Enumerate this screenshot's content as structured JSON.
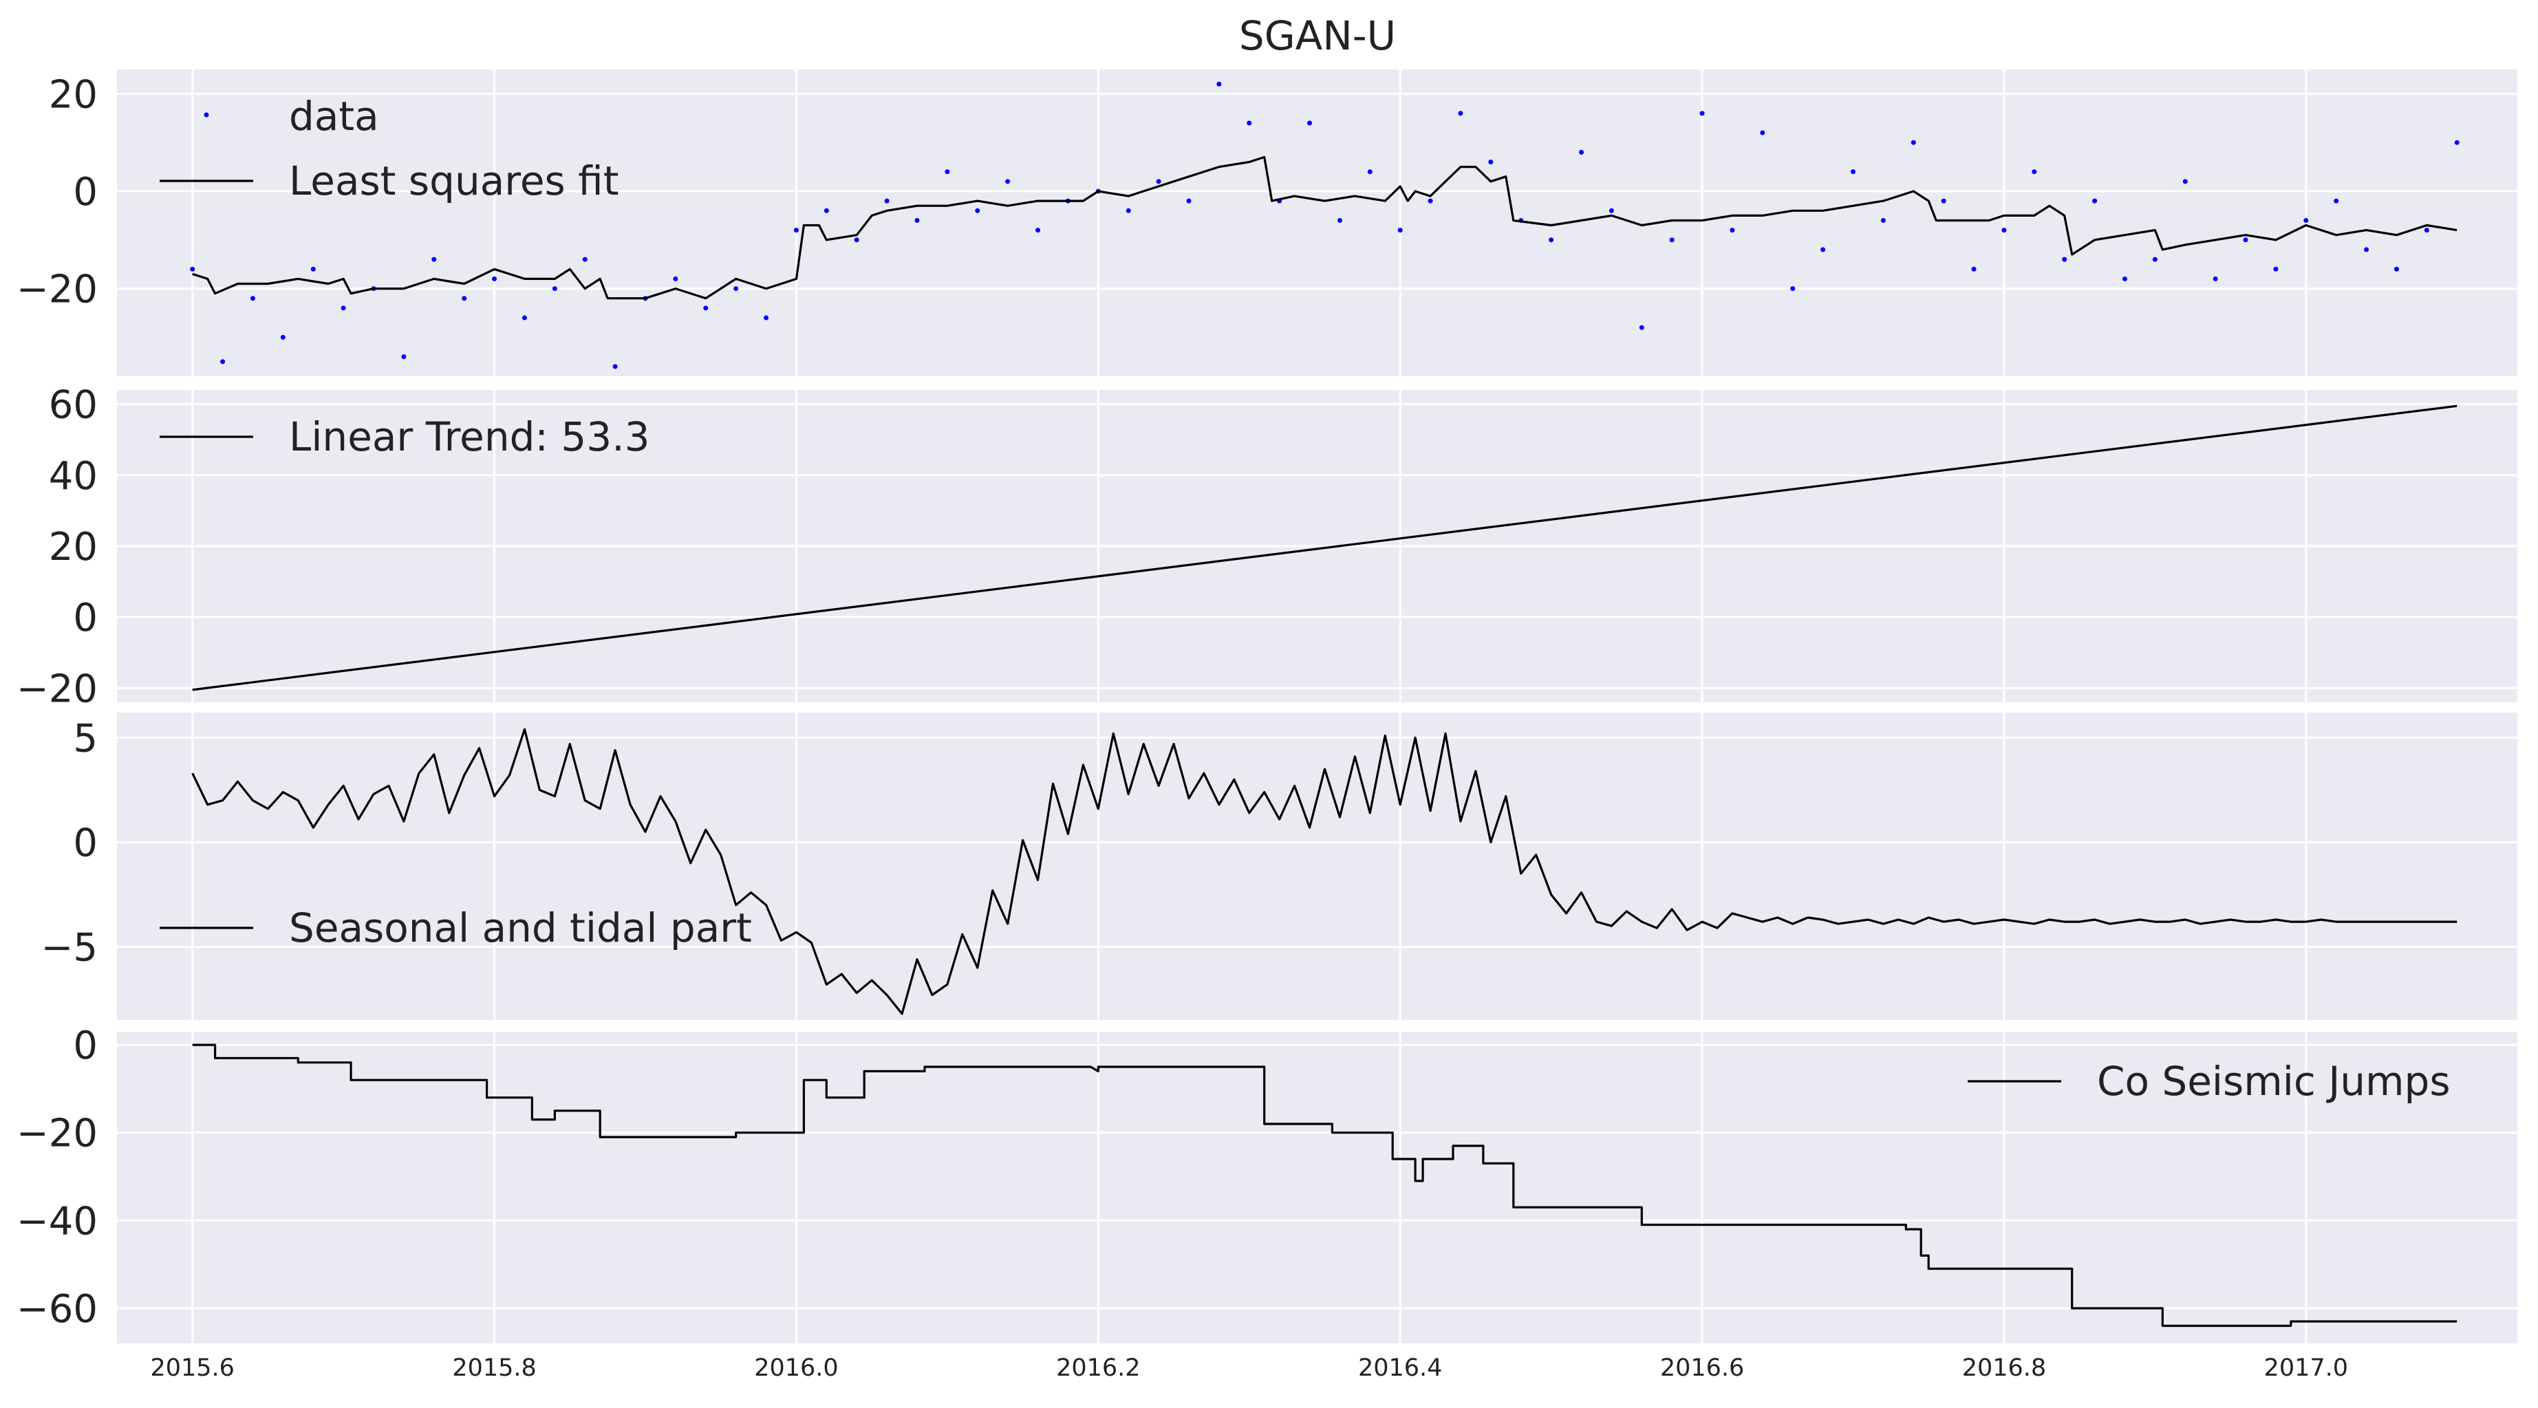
{
  "figure": {
    "title": "SGAN-U"
  },
  "colors": {
    "panel_bg": "#eaeaf2",
    "grid": "#ffffff",
    "line": "#000000",
    "data_points": "#0000ff",
    "text": "#222222"
  },
  "x_axis": {
    "range": [
      2015.55,
      2017.14
    ],
    "ticks": [
      2015.6,
      2015.8,
      2016.0,
      2016.2,
      2016.4,
      2016.6,
      2016.8,
      2017.0
    ],
    "tick_labels": [
      "2015.6",
      "2015.8",
      "2016.0",
      "2016.2",
      "2016.4",
      "2016.6",
      "2016.8",
      "2017.0"
    ]
  },
  "chart_data": [
    {
      "type": "line",
      "title": "SGAN-U",
      "ylim": [
        -38,
        25
      ],
      "yticks": [
        -20,
        0,
        20
      ],
      "ytick_labels": [
        "−20",
        "0",
        "20"
      ],
      "legend_loc": "upper left",
      "grid": true,
      "series": [
        {
          "name": "data",
          "style": "points",
          "x": [
            2015.6,
            2015.62,
            2015.64,
            2015.66,
            2015.68,
            2015.7,
            2015.72,
            2015.74,
            2015.76,
            2015.78,
            2015.8,
            2015.82,
            2015.84,
            2015.86,
            2015.88,
            2015.9,
            2015.92,
            2015.94,
            2015.96,
            2015.98,
            2016.0,
            2016.02,
            2016.04,
            2016.06,
            2016.08,
            2016.1,
            2016.12,
            2016.14,
            2016.16,
            2016.18,
            2016.2,
            2016.22,
            2016.24,
            2016.26,
            2016.28,
            2016.3,
            2016.32,
            2016.34,
            2016.36,
            2016.38,
            2016.4,
            2016.42,
            2016.44,
            2016.46,
            2016.48,
            2016.5,
            2016.52,
            2016.54,
            2016.56,
            2016.58,
            2016.6,
            2016.62,
            2016.64,
            2016.66,
            2016.68,
            2016.7,
            2016.72,
            2016.74,
            2016.76,
            2016.78,
            2016.8,
            2016.82,
            2016.84,
            2016.86,
            2016.88,
            2016.9,
            2016.92,
            2016.94,
            2016.96,
            2016.98,
            2017.0,
            2017.02,
            2017.04,
            2017.06,
            2017.08,
            2017.1
          ],
          "y": [
            -16,
            -35,
            -22,
            -30,
            -16,
            -24,
            -20,
            -34,
            -14,
            -22,
            -18,
            -26,
            -20,
            -14,
            -36,
            -22,
            -18,
            -24,
            -20,
            -26,
            -8,
            -4,
            -10,
            -2,
            -6,
            4,
            -4,
            2,
            -8,
            -2,
            0,
            -4,
            2,
            -2,
            22,
            14,
            -2,
            14,
            -6,
            4,
            -8,
            -2,
            16,
            6,
            -6,
            -10,
            8,
            -4,
            -28,
            -10,
            16,
            -8,
            12,
            -20,
            -12,
            4,
            -6,
            10,
            -2,
            -16,
            -8,
            4,
            -14,
            -2,
            -18,
            -14,
            2,
            -18,
            -10,
            -16,
            -6,
            -2,
            -12,
            -16,
            -8,
            10
          ]
        },
        {
          "name": "Least squares fit",
          "style": "line",
          "x": [
            2015.6,
            2015.61,
            2015.615,
            2015.63,
            2015.65,
            2015.67,
            2015.69,
            2015.7,
            2015.705,
            2015.72,
            2015.74,
            2015.76,
            2015.78,
            2015.8,
            2015.82,
            2015.84,
            2015.85,
            2015.86,
            2015.87,
            2015.875,
            2015.9,
            2015.92,
            2015.94,
            2015.96,
            2015.98,
            2016.0,
            2016.005,
            2016.015,
            2016.02,
            2016.04,
            2016.05,
            2016.06,
            2016.08,
            2016.1,
            2016.12,
            2016.14,
            2016.16,
            2016.18,
            2016.19,
            2016.2,
            2016.22,
            2016.24,
            2016.26,
            2016.28,
            2016.3,
            2016.31,
            2016.315,
            2016.33,
            2016.35,
            2016.37,
            2016.39,
            2016.4,
            2016.405,
            2016.41,
            2016.42,
            2016.43,
            2016.44,
            2016.45,
            2016.46,
            2016.47,
            2016.475,
            2016.5,
            2016.52,
            2016.54,
            2016.56,
            2016.58,
            2016.6,
            2016.62,
            2016.64,
            2016.66,
            2016.68,
            2016.7,
            2016.72,
            2016.73,
            2016.74,
            2016.75,
            2016.755,
            2016.77,
            2016.79,
            2016.8,
            2016.82,
            2016.83,
            2016.84,
            2016.845,
            2016.86,
            2016.88,
            2016.9,
            2016.905,
            2016.92,
            2016.94,
            2016.96,
            2016.98,
            2017.0,
            2017.02,
            2017.04,
            2017.06,
            2017.08,
            2017.1
          ],
          "y": [
            -17,
            -18,
            -21,
            -19,
            -19,
            -18,
            -19,
            -18,
            -21,
            -20,
            -20,
            -18,
            -19,
            -16,
            -18,
            -18,
            -16,
            -20,
            -18,
            -22,
            -22,
            -20,
            -22,
            -18,
            -20,
            -18,
            -7,
            -7,
            -10,
            -9,
            -5,
            -4,
            -3,
            -3,
            -2,
            -3,
            -2,
            -2,
            -2,
            0,
            -1,
            1,
            3,
            5,
            6,
            7,
            -2,
            -1,
            -2,
            -1,
            -2,
            1,
            -2,
            0,
            -1,
            2,
            5,
            5,
            2,
            3,
            -6,
            -7,
            -6,
            -5,
            -7,
            -6,
            -6,
            -5,
            -5,
            -4,
            -4,
            -3,
            -2,
            -1,
            0,
            -2,
            -6,
            -6,
            -6,
            -5,
            -5,
            -3,
            -5,
            -13,
            -10,
            -9,
            -8,
            -12,
            -11,
            -10,
            -9,
            -10,
            -7,
            -9,
            -8,
            -9,
            -7,
            -8
          ]
        }
      ]
    },
    {
      "type": "line",
      "ylim": [
        -24,
        64
      ],
      "yticks": [
        -20,
        0,
        20,
        40,
        60
      ],
      "ytick_labels": [
        "−20",
        "0",
        "20",
        "40",
        "60"
      ],
      "legend_loc": "upper left",
      "grid": true,
      "series": [
        {
          "name": " Linear Trend: 53.3",
          "style": "line",
          "x": [
            2015.6,
            2017.1
          ],
          "y": [
            -20.5,
            59.5
          ]
        }
      ]
    },
    {
      "type": "line",
      "ylim": [
        -8.5,
        6.2
      ],
      "yticks": [
        -5,
        0,
        5
      ],
      "ytick_labels": [
        "−5",
        "0",
        "5"
      ],
      "legend_loc": "center left",
      "grid": true,
      "series": [
        {
          "name": "Seasonal and tidal part",
          "style": "line",
          "x": [
            2015.6,
            2015.61,
            2015.62,
            2015.63,
            2015.64,
            2015.65,
            2015.66,
            2015.67,
            2015.68,
            2015.69,
            2015.7,
            2015.71,
            2015.72,
            2015.73,
            2015.74,
            2015.75,
            2015.76,
            2015.77,
            2015.78,
            2015.79,
            2015.8,
            2015.81,
            2015.82,
            2015.83,
            2015.84,
            2015.85,
            2015.86,
            2015.87,
            2015.88,
            2015.89,
            2015.9,
            2015.91,
            2015.92,
            2015.93,
            2015.94,
            2015.95,
            2015.96,
            2015.97,
            2015.98,
            2015.99,
            2016.0,
            2016.01,
            2016.02,
            2016.03,
            2016.04,
            2016.05,
            2016.06,
            2016.07,
            2016.08,
            2016.09,
            2016.1,
            2016.11,
            2016.12,
            2016.13,
            2016.14,
            2016.15,
            2016.16,
            2016.17,
            2016.18,
            2016.19,
            2016.2,
            2016.21,
            2016.22,
            2016.23,
            2016.24,
            2016.25,
            2016.26,
            2016.27,
            2016.28,
            2016.29,
            2016.3,
            2016.31,
            2016.32,
            2016.33,
            2016.34,
            2016.35,
            2016.36,
            2016.37,
            2016.38,
            2016.39,
            2016.4,
            2016.41,
            2016.42,
            2016.43,
            2016.44,
            2016.45,
            2016.46,
            2016.47,
            2016.48,
            2016.49,
            2016.5,
            2016.51,
            2016.52,
            2016.53,
            2016.54,
            2016.55,
            2016.56,
            2016.57,
            2016.58,
            2016.59,
            2016.6,
            2016.61,
            2016.62,
            2016.63,
            2016.64,
            2016.65,
            2016.66,
            2016.67,
            2016.68,
            2016.69,
            2016.7,
            2016.71,
            2016.72,
            2016.73,
            2016.74,
            2016.75,
            2016.76,
            2016.77,
            2016.78,
            2016.79,
            2016.8,
            2016.81,
            2016.82,
            2016.83,
            2016.84,
            2016.85,
            2016.86,
            2016.87,
            2016.88,
            2016.89,
            2016.9,
            2016.91,
            2016.92,
            2016.93,
            2016.94,
            2016.95,
            2016.96,
            2016.97,
            2016.98,
            2016.99,
            2017.0,
            2017.01,
            2017.02,
            2017.03,
            2017.04,
            2017.05,
            2017.06,
            2017.07,
            2017.08,
            2017.09,
            2017.1
          ],
          "y": [
            3.3,
            1.8,
            2.0,
            2.9,
            2.0,
            1.6,
            2.4,
            2.0,
            0.7,
            1.8,
            2.7,
            1.1,
            2.3,
            2.7,
            1.0,
            3.3,
            4.2,
            1.4,
            3.2,
            4.5,
            2.2,
            3.2,
            5.4,
            2.5,
            2.2,
            4.7,
            2.0,
            1.6,
            4.4,
            1.8,
            0.5,
            2.2,
            1.0,
            -1.0,
            0.6,
            -0.6,
            -3.0,
            -2.4,
            -3.0,
            -4.7,
            -4.3,
            -4.8,
            -6.8,
            -6.3,
            -7.2,
            -6.6,
            -7.3,
            -8.2,
            -5.6,
            -7.3,
            -6.8,
            -4.4,
            -6.0,
            -2.3,
            -3.9,
            0.1,
            -1.8,
            2.8,
            0.4,
            3.7,
            1.6,
            5.2,
            2.3,
            4.7,
            2.7,
            4.7,
            2.1,
            3.3,
            1.8,
            3.0,
            1.4,
            2.4,
            1.1,
            2.7,
            0.7,
            3.5,
            1.2,
            4.1,
            1.4,
            5.1,
            1.8,
            5.0,
            1.5,
            5.2,
            1.0,
            3.4,
            0.0,
            2.2,
            -1.5,
            -0.6,
            -2.5,
            -3.4,
            -2.4,
            -3.8,
            -4.0,
            -3.3,
            -3.8,
            -4.1,
            -3.2,
            -4.2,
            -3.8,
            -4.1,
            -3.4,
            -3.6,
            -3.8,
            -3.6,
            -3.9,
            -3.6,
            -3.7,
            -3.9,
            -3.8,
            -3.7,
            -3.9,
            -3.7,
            -3.9,
            -3.6,
            -3.8,
            -3.7,
            -3.9,
            -3.8,
            -3.7,
            -3.8,
            -3.9,
            -3.7,
            -3.8,
            -3.8,
            -3.7,
            -3.9,
            -3.8,
            -3.7,
            -3.8,
            -3.8,
            -3.7,
            -3.9,
            -3.8,
            -3.7,
            -3.8,
            -3.8,
            -3.7,
            -3.8,
            -3.8,
            -3.7,
            -3.8,
            -3.8,
            -3.8,
            -3.8,
            -3.8,
            -3.8,
            -3.8,
            -3.8,
            -3.8
          ]
        }
      ]
    },
    {
      "type": "line",
      "ylim": [
        -68,
        3
      ],
      "yticks": [
        -60,
        -40,
        -20,
        0
      ],
      "ytick_labels": [
        "−60",
        "−40",
        "−20",
        "0"
      ],
      "legend_loc": "upper right",
      "grid": true,
      "series": [
        {
          "name": "Co Seismic Jumps",
          "style": "step",
          "x": [
            2015.6,
            2015.615,
            2015.615,
            2015.67,
            2015.67,
            2015.705,
            2015.705,
            2015.795,
            2015.795,
            2015.825,
            2015.825,
            2015.84,
            2015.84,
            2015.87,
            2015.87,
            2015.96,
            2015.96,
            2016.005,
            2016.005,
            2016.02,
            2016.02,
            2016.045,
            2016.045,
            2016.085,
            2016.085,
            2016.195,
            2016.2,
            2016.2,
            2016.31,
            2016.31,
            2016.315,
            2016.315,
            2016.355,
            2016.355,
            2016.395,
            2016.395,
            2016.41,
            2016.41,
            2016.415,
            2016.415,
            2016.435,
            2016.435,
            2016.455,
            2016.455,
            2016.475,
            2016.475,
            2016.56,
            2016.56,
            2016.735,
            2016.735,
            2016.745,
            2016.745,
            2016.75,
            2016.75,
            2016.79,
            2016.79,
            2016.845,
            2016.845,
            2016.905,
            2016.905,
            2016.99,
            2016.99,
            2017.1
          ],
          "y": [
            0,
            0,
            -3,
            -3,
            -4,
            -4,
            -8,
            -8,
            -12,
            -12,
            -17,
            -17,
            -15,
            -15,
            -21,
            -21,
            -20,
            -20,
            -8,
            -8,
            -12,
            -12,
            -6,
            -6,
            -5,
            -5,
            -6,
            -5,
            -5,
            -18,
            -18,
            -18,
            -18,
            -20,
            -20,
            -26,
            -26,
            -31,
            -31,
            -26,
            -26,
            -23,
            -23,
            -27,
            -27,
            -37,
            -37,
            -41,
            -41,
            -42,
            -42,
            -48,
            -48,
            -51,
            -51,
            -51,
            -51,
            -60,
            -60,
            -64,
            -64,
            -63,
            -63
          ]
        }
      ]
    }
  ]
}
